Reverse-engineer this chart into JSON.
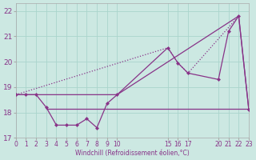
{
  "bg_color": "#cce8e2",
  "grid_color": "#aad4cc",
  "line_color": "#883388",
  "xlim": [
    0,
    23
  ],
  "ylim": [
    17,
    22.3
  ],
  "yticks": [
    17,
    18,
    19,
    20,
    21,
    22
  ],
  "xtick_positions": [
    0,
    1,
    2,
    3,
    4,
    5,
    6,
    7,
    8,
    9,
    10,
    15,
    16,
    17,
    20,
    21,
    22,
    23
  ],
  "xtick_labels": [
    "0",
    "1",
    "2",
    "3",
    "4",
    "5",
    "6",
    "7",
    "8",
    "9",
    "10",
    "15",
    "16",
    "17",
    "20",
    "21",
    "22",
    "23"
  ],
  "line1_x": [
    0,
    1,
    2,
    3,
    4,
    5,
    6,
    7,
    8,
    9,
    10,
    15,
    16,
    17,
    20,
    21,
    22,
    23
  ],
  "line1_y": [
    18.7,
    18.7,
    18.7,
    18.2,
    17.5,
    17.5,
    17.5,
    17.75,
    17.4,
    18.35,
    18.7,
    20.55,
    19.95,
    19.55,
    19.3,
    21.2,
    21.8,
    18.1
  ],
  "line2_x": [
    0,
    3,
    10,
    22,
    23
  ],
  "line2_y": [
    18.7,
    18.7,
    18.7,
    21.8,
    18.1
  ],
  "line3_x": [
    0,
    15,
    16,
    17,
    22
  ],
  "line3_y": [
    18.7,
    20.55,
    19.95,
    19.55,
    21.8
  ],
  "line4_x": [
    3,
    23
  ],
  "line4_y": [
    18.15,
    18.15
  ],
  "xlabel": "Windchill (Refroidissement éolien,°C)"
}
